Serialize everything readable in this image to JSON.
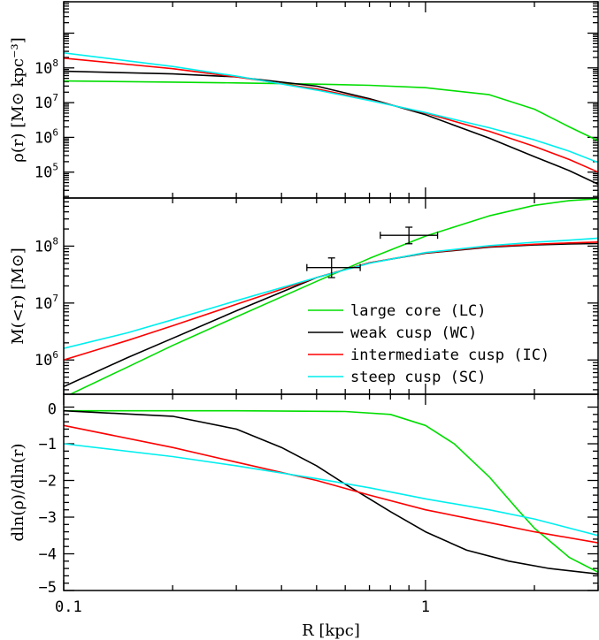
{
  "chart_data": [
    {
      "type": "line",
      "panel": "top",
      "ylabel": "ρ(r) [M⊙ kpc⁻³]",
      "xscale": "log",
      "yscale": "log",
      "xlim": [
        0.1,
        3.0
      ],
      "ylim": [
        18000,
        8000000000
      ],
      "xticks": [
        {
          "value": 0.1,
          "label": "0.1"
        },
        {
          "value": 1,
          "label": "1"
        }
      ],
      "yticks": [
        {
          "value": 100000,
          "base": "10",
          "exp": "5"
        },
        {
          "value": 1000000,
          "base": "10",
          "exp": "6"
        },
        {
          "value": 10000000,
          "base": "10",
          "exp": "7"
        },
        {
          "value": 100000000,
          "base": "10",
          "exp": "8"
        }
      ],
      "series": [
        {
          "name": "large core (LC)",
          "color": "#00dd00",
          "x": [
            0.1,
            0.2,
            0.3,
            0.5,
            0.7,
            1.0,
            1.5,
            2.0,
            2.5,
            3.0
          ],
          "y": [
            42000000,
            39000000,
            37000000,
            34000000,
            31500000,
            27000000,
            17000000,
            6500000,
            2000000,
            800000
          ]
        },
        {
          "name": "weak cusp (WC)",
          "color": "#000000",
          "x": [
            0.1,
            0.2,
            0.3,
            0.5,
            0.7,
            1.0,
            1.5,
            2.0,
            2.5,
            3.0
          ],
          "y": [
            80000000,
            67000000,
            55000000,
            30000000,
            13000000,
            4500000,
            950000,
            280000,
            110000,
            45000
          ]
        },
        {
          "name": "intermediate cusp (IC)",
          "color": "#ff0000",
          "x": [
            0.1,
            0.2,
            0.3,
            0.5,
            0.7,
            1.0,
            1.5,
            2.0,
            2.5,
            3.0
          ],
          "y": [
            190000000,
            95000000,
            55000000,
            25000000,
            12000000,
            5000000,
            1500000,
            550000,
            230000,
            100000
          ]
        },
        {
          "name": "steep cusp (SC)",
          "color": "#00eeee",
          "x": [
            0.1,
            0.2,
            0.3,
            0.5,
            0.7,
            1.0,
            1.5,
            2.0,
            2.5,
            3.0
          ],
          "y": [
            270000000,
            110000000,
            58000000,
            23000000,
            11500000,
            5200000,
            1900000,
            850000,
            400000,
            190000
          ]
        }
      ]
    },
    {
      "type": "line",
      "panel": "middle",
      "ylabel": "M(<r) [M⊙]",
      "xscale": "log",
      "yscale": "log",
      "xlim": [
        0.1,
        3.0
      ],
      "ylim": [
        250000,
        700000000
      ],
      "xticks": [
        {
          "value": 0.1,
          "label": "0.1"
        },
        {
          "value": 1,
          "label": "1"
        }
      ],
      "yticks": [
        {
          "value": 1000000,
          "base": "10",
          "exp": "6"
        },
        {
          "value": 10000000,
          "base": "10",
          "exp": "7"
        },
        {
          "value": 100000000,
          "base": "10",
          "exp": "8"
        }
      ],
      "legend": {
        "position": "lower-right"
      },
      "series": [
        {
          "name": "large core (LC)",
          "color": "#00dd00",
          "x": [
            0.1,
            0.15,
            0.2,
            0.3,
            0.5,
            0.7,
            1.0,
            1.5,
            2.0,
            2.5,
            3.0
          ],
          "y": [
            220000,
            750000,
            1800000,
            5700000,
            24000000,
            61000000,
            150000000,
            340000000,
            520000000,
            630000000,
            680000000
          ]
        },
        {
          "name": "weak cusp (WC)",
          "color": "#000000",
          "x": [
            0.1,
            0.15,
            0.2,
            0.3,
            0.5,
            0.7,
            1.0,
            1.5,
            2.0,
            2.5,
            3.0
          ],
          "y": [
            340000,
            1100000,
            2400000,
            7300000,
            28000000,
            51000000,
            75000000,
            96000000,
            105000000,
            109000000,
            111000000
          ]
        },
        {
          "name": "intermediate cusp (IC)",
          "color": "#ff0000",
          "x": [
            0.1,
            0.15,
            0.2,
            0.3,
            0.5,
            0.7,
            1.0,
            1.5,
            2.0,
            2.5,
            3.0
          ],
          "y": [
            1000000,
            2200000,
            4000000,
            9500000,
            28000000,
            51000000,
            76000000,
            98000000,
            108000000,
            114000000,
            118000000
          ]
        },
        {
          "name": "steep cusp (SC)",
          "color": "#00eeee",
          "x": [
            0.1,
            0.15,
            0.2,
            0.3,
            0.5,
            0.7,
            1.0,
            1.5,
            2.0,
            2.5,
            3.0
          ],
          "y": [
            1600000,
            3000000,
            5100000,
            11000000,
            28000000,
            50000000,
            77000000,
            102000000,
            117000000,
            127000000,
            138000000
          ]
        }
      ],
      "errorbars": [
        {
          "x": 0.55,
          "xerr_low": 0.47,
          "xerr_high": 0.66,
          "y": 42000000,
          "yerr_low": 28000000,
          "yerr_high": 62000000
        },
        {
          "x": 0.9,
          "xerr_low": 0.75,
          "xerr_high": 1.08,
          "y": 155000000,
          "yerr_low": 110000000,
          "yerr_high": 215000000
        }
      ]
    },
    {
      "type": "line",
      "panel": "bottom",
      "ylabel": "dln(ρ)/dln(r)",
      "xlabel": "R [kpc]",
      "xscale": "log",
      "yscale": "linear",
      "xlim": [
        0.1,
        3.0
      ],
      "ylim": [
        -5,
        0.35
      ],
      "xticks": [
        {
          "value": 0.1,
          "label": "0.1"
        },
        {
          "value": 1,
          "label": "1"
        }
      ],
      "yticks": [
        {
          "value": 0,
          "label": "0"
        },
        {
          "value": -1,
          "label": "−1"
        },
        {
          "value": -2,
          "label": "−2"
        },
        {
          "value": -3,
          "label": "−3"
        },
        {
          "value": -4,
          "label": "−4"
        },
        {
          "value": -5,
          "label": "−5"
        }
      ],
      "series": [
        {
          "name": "large core (LC)",
          "color": "#00dd00",
          "x": [
            0.1,
            0.3,
            0.6,
            0.8,
            1.0,
            1.2,
            1.5,
            1.8,
            2.0,
            2.5,
            3.0
          ],
          "y": [
            -0.1,
            -0.1,
            -0.12,
            -0.2,
            -0.5,
            -1.0,
            -1.9,
            -2.8,
            -3.3,
            -4.1,
            -4.5
          ]
        },
        {
          "name": "weak cusp (WC)",
          "color": "#000000",
          "x": [
            0.1,
            0.2,
            0.3,
            0.4,
            0.5,
            0.6,
            0.7,
            0.8,
            1.0,
            1.3,
            1.7,
            2.2,
            3.0
          ],
          "y": [
            -0.1,
            -0.25,
            -0.6,
            -1.1,
            -1.6,
            -2.1,
            -2.5,
            -2.85,
            -3.4,
            -3.9,
            -4.2,
            -4.4,
            -4.55
          ]
        },
        {
          "name": "intermediate cusp (IC)",
          "color": "#ff0000",
          "x": [
            0.1,
            0.2,
            0.3,
            0.5,
            0.7,
            1.0,
            1.5,
            2.0,
            3.0
          ],
          "y": [
            -0.5,
            -1.1,
            -1.5,
            -2.0,
            -2.4,
            -2.8,
            -3.15,
            -3.4,
            -3.7
          ]
        },
        {
          "name": "steep cusp (SC)",
          "color": "#00eeee",
          "x": [
            0.1,
            0.2,
            0.3,
            0.5,
            0.7,
            1.0,
            1.5,
            2.0,
            3.0
          ],
          "y": [
            -1.0,
            -1.35,
            -1.6,
            -1.95,
            -2.2,
            -2.5,
            -2.8,
            -3.05,
            -3.5
          ]
        }
      ]
    }
  ]
}
